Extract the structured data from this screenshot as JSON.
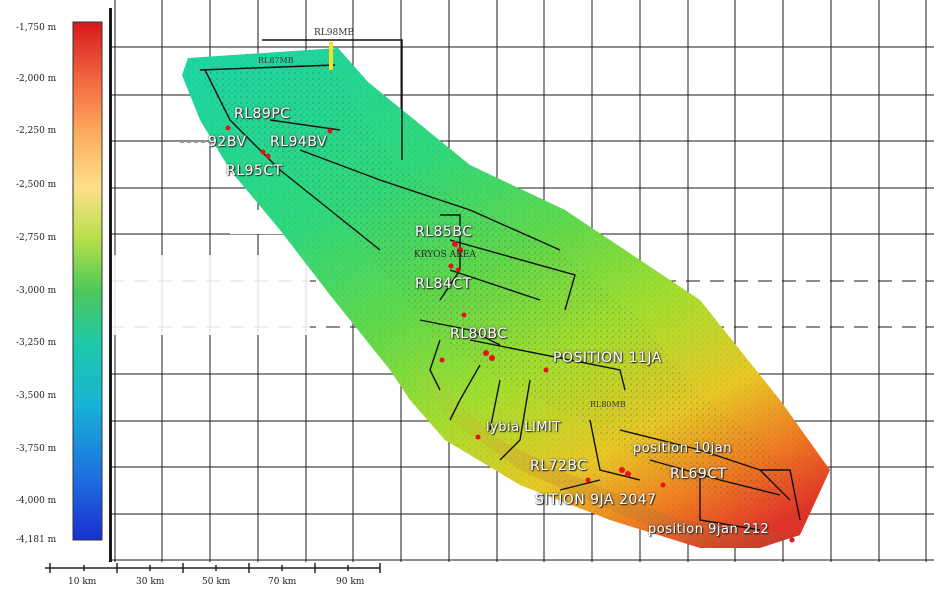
{
  "legend": {
    "ticks": [
      "-1,750 m",
      "-2,000 m",
      "-2,250 m",
      "-2,500 m",
      "-2,750 m",
      "-3,000 m",
      "-3,250 m",
      "-3,500 m",
      "-3,750 m",
      "-4,000 m",
      "-4,181 m"
    ],
    "colors": [
      "#d7191c",
      "#f46d43",
      "#fdae61",
      "#fee08b",
      "#d9ef8b",
      "#66c164",
      "#1fc9a8",
      "#17b3d6",
      "#1e6fe0",
      "#1a2fd0"
    ]
  },
  "scale_bar": {
    "labels": [
      "10 km",
      "30 km",
      "50 km",
      "70 km",
      "90 km"
    ]
  },
  "map": {
    "top_marker": "RL98MB",
    "labels": [
      {
        "id": "rl89pc",
        "text": "RL89PC"
      },
      {
        "id": "rl92bv",
        "text": "92BV"
      },
      {
        "id": "rl94bv",
        "text": "RL94BV"
      },
      {
        "id": "rl95ct",
        "text": "RL95CT"
      },
      {
        "id": "rl85bc",
        "text": "RL85BC"
      },
      {
        "id": "rl84ct",
        "text": "RL84CT"
      },
      {
        "id": "rl80bc",
        "text": "RL80BC"
      },
      {
        "id": "pos11",
        "text": "POSITION 11JA"
      },
      {
        "id": "lybia",
        "text": "lybia LIMIT"
      },
      {
        "id": "pos10",
        "text": "position 10jan"
      },
      {
        "id": "rl72bc",
        "text": "RL72BC"
      },
      {
        "id": "rl69ct",
        "text": "RL69CT"
      },
      {
        "id": "pos9a",
        "text": "SITION 9JA 2047"
      },
      {
        "id": "pos9b",
        "text": "position 9jan 212"
      }
    ],
    "faint_labels": [
      "RL87MB",
      "KRYOS AREA",
      "RL80MB"
    ]
  },
  "colors": {
    "grid": "#1a1a1a",
    "label_text": "#ffffff",
    "point": "#e8101a"
  }
}
